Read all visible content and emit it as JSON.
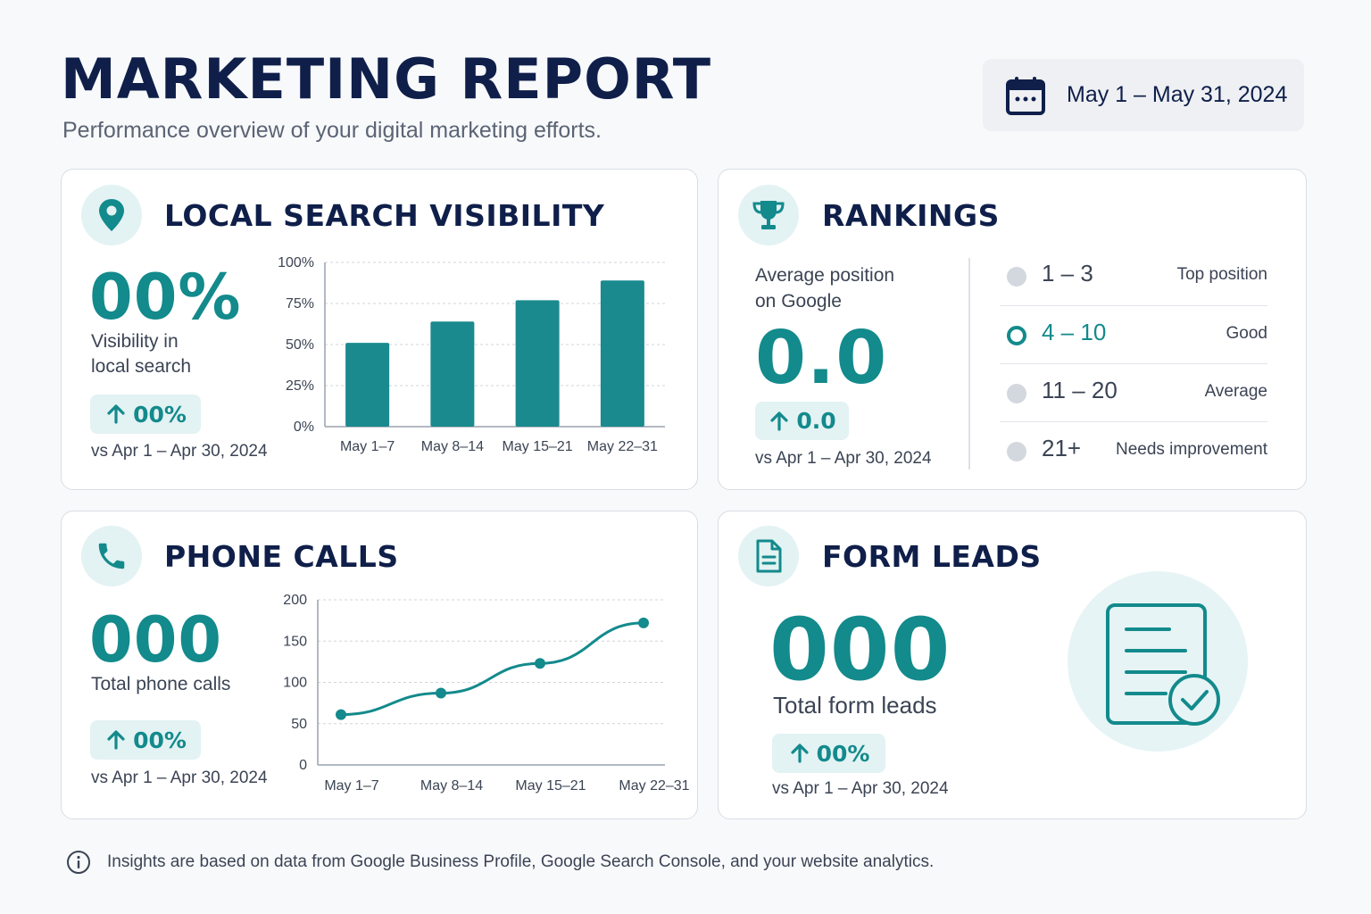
{
  "header": {
    "title": "MARKETING REPORT",
    "subtitle": "Performance overview of your digital marketing efforts.",
    "date_range": "May 1 – May 31, 2024",
    "date_icon": "calendar-icon"
  },
  "local_search": {
    "icon": "location-pin-icon",
    "title": "LOCAL SEARCH VISIBILITY",
    "value": "00%",
    "label_line1": "Visibility in",
    "label_line2": "local search",
    "change": "00%",
    "compare": "vs Apr 1 – Apr 30, 2024"
  },
  "rankings": {
    "icon": "trophy-icon",
    "title": "RANKINGS",
    "label_line1": "Average position",
    "label_line2": "on Google",
    "value": "0.0",
    "change": "0.0",
    "compare": "vs Apr 1 – Apr 30, 2024",
    "tiers": [
      {
        "range": "1 – 3",
        "desc": "Top position",
        "active": false
      },
      {
        "range": "4 – 10",
        "desc": "Good",
        "active": true
      },
      {
        "range": "11 – 20",
        "desc": "Average",
        "active": false
      },
      {
        "range": "21+",
        "desc": "Needs improvement",
        "active": false
      }
    ]
  },
  "phone_calls": {
    "icon": "phone-icon",
    "title": "PHONE CALLS",
    "value": "000",
    "label": "Total phone calls",
    "change": "00%",
    "compare": "vs Apr 1 – Apr 30, 2024"
  },
  "form_leads": {
    "icon": "document-icon",
    "title": "FORM LEADS",
    "value": "000",
    "label": "Total form leads",
    "change": "00%",
    "compare": "vs Apr 1 – Apr 30, 2024",
    "illustration": "form-checked-icon"
  },
  "footer": {
    "icon": "info-icon",
    "text": "Insights are based on data from Google Business Profile, Google Search Console, and your website analytics."
  },
  "colors": {
    "accent": "#138a8c",
    "bar": "#1a8a8e",
    "navy": "#0f1f4a",
    "accent_light": "#e3f2f3"
  },
  "chart_data": [
    {
      "type": "bar",
      "categories": [
        "May 1–7",
        "May 8–14",
        "May 15–21",
        "May 22–31"
      ],
      "values": [
        51,
        64,
        77,
        89
      ],
      "ylim": [
        0,
        100
      ],
      "yticks": [
        0,
        25,
        50,
        75,
        100
      ],
      "ytick_labels": [
        "0%",
        "25%",
        "50%",
        "75%",
        "100%"
      ],
      "grid": true
    },
    {
      "type": "line",
      "categories": [
        "May 1–7",
        "May 8–14",
        "May 15–21",
        "May 22–31"
      ],
      "values": [
        61,
        87,
        123,
        172
      ],
      "ylim": [
        0,
        200
      ],
      "yticks": [
        0,
        50,
        100,
        150,
        200
      ],
      "ytick_labels": [
        "0",
        "50",
        "100",
        "150",
        "200"
      ],
      "grid": true
    }
  ]
}
